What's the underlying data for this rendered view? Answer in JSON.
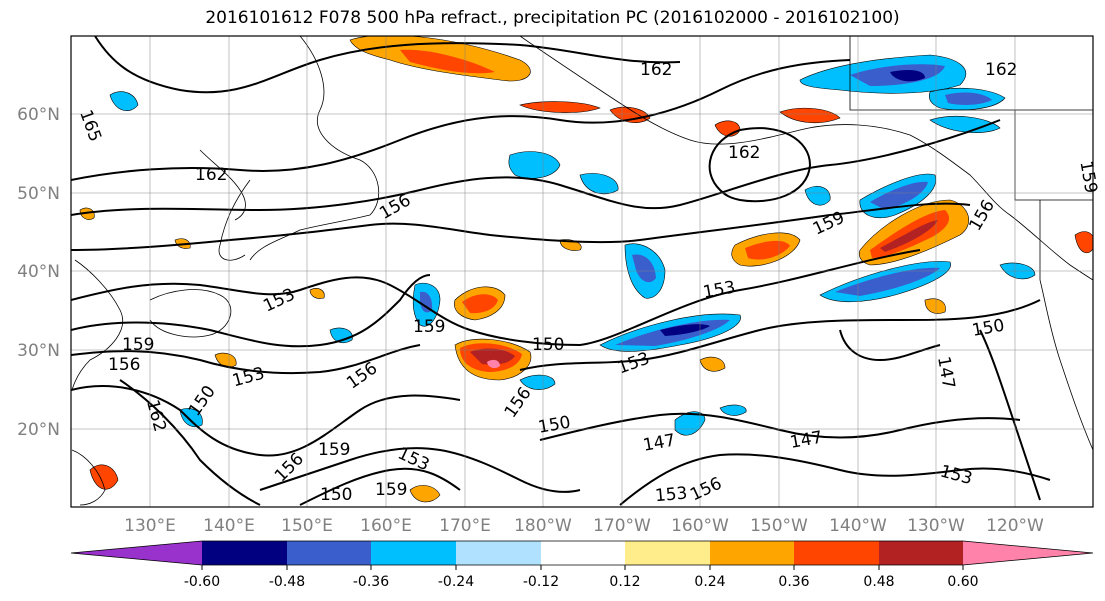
{
  "title": "2016101612 F078 500 hPa refract., precipitation PC (2016102000 - 2016102100)",
  "map": {
    "lat_labels": [
      "60°N",
      "50°N",
      "40°N",
      "30°N",
      "20°N"
    ],
    "lon_labels": [
      "130°E",
      "140°E",
      "150°E",
      "160°E",
      "170°E",
      "180°W",
      "170°W",
      "160°W",
      "150°W",
      "140°W",
      "130°W",
      "120°W"
    ],
    "contour_labels": [
      "165",
      "162",
      "162",
      "162",
      "162",
      "159",
      "159",
      "159",
      "159",
      "159",
      "156",
      "156",
      "156",
      "156",
      "156",
      "156",
      "156",
      "153",
      "153",
      "153",
      "153",
      "153",
      "153",
      "150",
      "150",
      "150",
      "150",
      "150",
      "147",
      "147",
      "147",
      "162",
      "153",
      "159"
    ]
  },
  "colorbar": {
    "ticks": [
      "-0.60",
      "-0.48",
      "-0.36",
      "-0.24",
      "-0.12",
      "0.12",
      "0.24",
      "0.36",
      "0.48",
      "0.60"
    ],
    "colors": [
      "#9932cc",
      "#000080",
      "#3a5fcd",
      "#00bfff",
      "#b0e2ff",
      "#ffffff",
      "#ffec8b",
      "#ffa500",
      "#ff4500",
      "#b22222",
      "#ff82ab"
    ]
  }
}
